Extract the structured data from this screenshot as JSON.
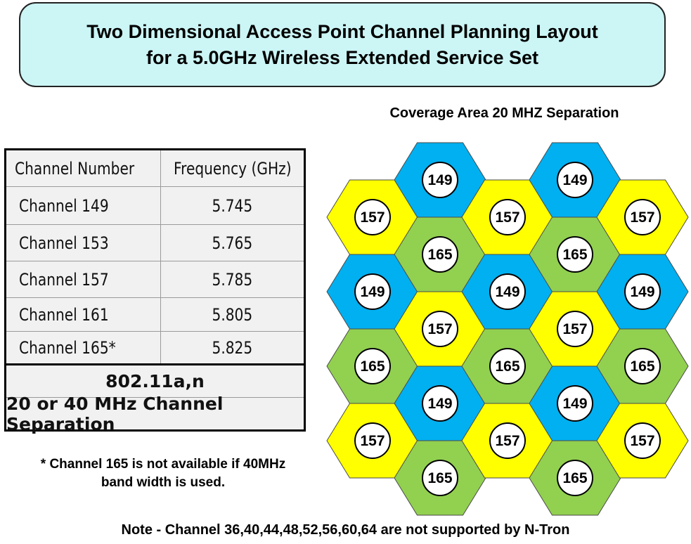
{
  "title": {
    "line1": "Two Dimensional Access Point Channel Planning Layout",
    "line2": "for a 5.0GHz Wireless Extended Service Set"
  },
  "coverage_label": "Coverage Area 20 MHZ Separation",
  "table": {
    "headers": [
      "Channel Number",
      "Frequency (GHz)"
    ],
    "rows": [
      {
        "channel": "Channel 149",
        "frequency": "5.745"
      },
      {
        "channel": "Channel 153",
        "frequency": "5.765"
      },
      {
        "channel": "Channel 157",
        "frequency": "5.785"
      },
      {
        "channel": "Channel 161",
        "frequency": "5.805"
      },
      {
        "channel": "Channel 165*",
        "frequency": "5.825"
      }
    ],
    "standard": "802.11a,n",
    "separation": "20 or 40 MHz Channel Separation"
  },
  "footnote": {
    "line1": "*  Channel 165 is not available if 40MHz",
    "line2": "band width is used."
  },
  "note": "Note - Channel 36,40,44,48,52,56,60,64 are not supported by N-Tron",
  "colors": {
    "149": "#00b0f0",
    "157": "#ffff00",
    "165": "#92d050",
    "title_fill": "#ccf5f5"
  },
  "hex_grid": {
    "columns": [
      [
        "157",
        "149",
        "165",
        "157"
      ],
      [
        "149",
        "165",
        "157",
        "149",
        "165"
      ],
      [
        "157",
        "149",
        "165",
        "157"
      ],
      [
        "149",
        "165",
        "157",
        "149",
        "165"
      ],
      [
        "157",
        "149",
        "165",
        "157"
      ]
    ]
  }
}
